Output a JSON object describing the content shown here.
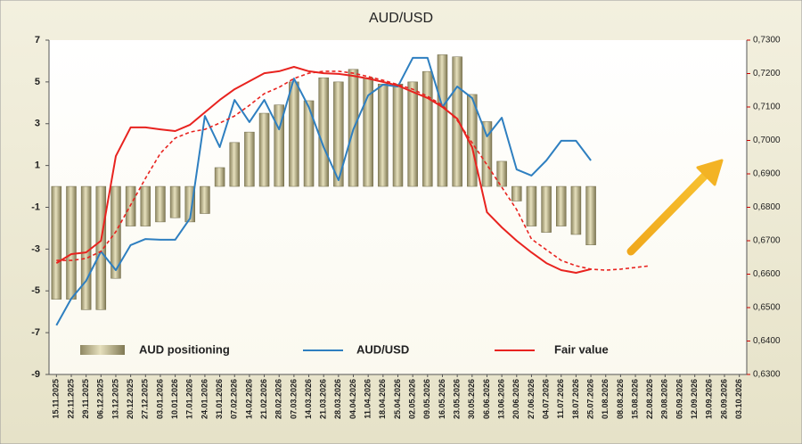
{
  "chart_data": {
    "type": "combo",
    "title": "AUD/USD",
    "categories": [
      "15.11.2025",
      "22.11.2025",
      "29.11.2025",
      "06.12.2025",
      "13.12.2025",
      "20.12.2025",
      "27.12.2025",
      "03.01.2026",
      "10.01.2026",
      "17.01.2026",
      "24.01.2026",
      "31.01.2026",
      "07.02.2026",
      "14.02.2026",
      "21.02.2026",
      "28.02.2026",
      "07.03.2026",
      "14.03.2026",
      "21.03.2026",
      "28.03.2026",
      "04.04.2026",
      "11.04.2026",
      "18.04.2026",
      "25.04.2026",
      "02.05.2026",
      "09.05.2026",
      "16.05.2026",
      "23.05.2026",
      "30.05.2026",
      "06.06.2026",
      "13.06.2026",
      "20.06.2026",
      "27.06.2026",
      "04.07.2026",
      "11.07.2026",
      "18.07.2026",
      "25.07.2026",
      "01.08.2026",
      "08.08.2026",
      "15.08.2026",
      "22.08.2026",
      "29.08.2026",
      "05.09.2026",
      "12.09.2026",
      "19.09.2026",
      "26.09.2026",
      "03.10.2026"
    ],
    "series": [
      {
        "name": "AUD positioning",
        "type": "bar",
        "axis": "y",
        "color": "#c9c29a",
        "values": [
          -5.4,
          -5.4,
          -5.9,
          -5.9,
          -4.4,
          -1.9,
          -1.9,
          -1.7,
          -1.5,
          -1.7,
          -1.3,
          0.9,
          2.1,
          2.6,
          3.5,
          3.9,
          5.0,
          4.1,
          5.2,
          5.0,
          5.6,
          5.2,
          4.9,
          4.9,
          5.0,
          5.5,
          6.3,
          6.2,
          4.4,
          3.1,
          1.2,
          -0.7,
          -1.9,
          -2.2,
          -1.9,
          -2.3,
          -2.8,
          null,
          null,
          null,
          null,
          null,
          null,
          null,
          null,
          null,
          null
        ]
      },
      {
        "name": "AUD/USD",
        "type": "line",
        "axis": "y2",
        "color": "#2e7fc0",
        "values": [
          0.6447,
          0.6527,
          0.658,
          0.6668,
          0.6612,
          0.6687,
          0.6705,
          0.6703,
          0.6703,
          0.6767,
          0.7073,
          0.698,
          0.7121,
          0.7055,
          0.7121,
          0.7033,
          0.7185,
          0.71,
          0.698,
          0.6881,
          0.7033,
          0.7135,
          0.7167,
          0.7161,
          0.7247,
          0.7247,
          0.71,
          0.7161,
          0.7127,
          0.7012,
          0.7068,
          0.6913,
          0.6895,
          0.694,
          0.6999,
          0.6999,
          0.694,
          null,
          null,
          null,
          null,
          null,
          null,
          null,
          null,
          null,
          null
        ]
      },
      {
        "name": "Fair value",
        "type": "line",
        "axis": "y2",
        "color": "#e8231f",
        "values": [
          0.6633,
          0.666,
          0.6665,
          0.67,
          0.6953,
          0.7039,
          0.7039,
          0.7033,
          0.7028,
          0.7047,
          0.7084,
          0.7121,
          0.7153,
          0.7177,
          0.7201,
          0.7207,
          0.722,
          0.7207,
          0.7201,
          0.7199,
          0.7193,
          0.7185,
          0.7175,
          0.7164,
          0.7145,
          0.7127,
          0.71,
          0.7065,
          0.698,
          0.6785,
          0.674,
          0.67,
          0.6665,
          0.6633,
          0.6612,
          0.6604,
          0.6615,
          null,
          null,
          null,
          null,
          null,
          null,
          null,
          null,
          null,
          null
        ]
      },
      {
        "type": "line",
        "axis": "y2",
        "color": "#e8231f",
        "dashed": true,
        "values": [
          0.6641,
          0.6641,
          0.6647,
          0.6668,
          0.6727,
          0.6807,
          0.6887,
          0.6961,
          0.7007,
          0.7025,
          0.7033,
          0.7052,
          0.7073,
          0.7105,
          0.714,
          0.7159,
          0.7185,
          0.7201,
          0.7207,
          0.7207,
          0.7201,
          0.7191,
          0.718,
          0.7167,
          0.7153,
          0.7132,
          0.7105,
          0.706,
          0.6993,
          0.6927,
          0.686,
          0.6793,
          0.6705,
          0.6673,
          0.6641,
          0.6625,
          0.6615,
          0.6612,
          0.6615,
          0.662,
          0.6625,
          null,
          null,
          null,
          null,
          null,
          null
        ]
      }
    ],
    "ylim": [
      -9,
      7
    ],
    "yticks": [
      -9,
      -7,
      -5,
      -3,
      -1,
      1,
      3,
      5,
      7
    ],
    "y2lim": [
      0.63,
      0.73
    ],
    "y2ticks": [
      {
        "value": 0.63,
        "label": "0,6300"
      },
      {
        "value": 0.64,
        "label": "0,6400"
      },
      {
        "value": 0.65,
        "label": "0,6500"
      },
      {
        "value": 0.66,
        "label": "0,6600"
      },
      {
        "value": 0.67,
        "label": "0,6700"
      },
      {
        "value": 0.68,
        "label": "0,6800"
      },
      {
        "value": 0.69,
        "label": "0,6900"
      },
      {
        "value": 0.7,
        "label": "0,7000"
      },
      {
        "value": 0.71,
        "label": "0,7100"
      },
      {
        "value": 0.72,
        "label": "0,7200"
      },
      {
        "value": 0.73,
        "label": "0,7300"
      }
    ],
    "grid": false
  }
}
